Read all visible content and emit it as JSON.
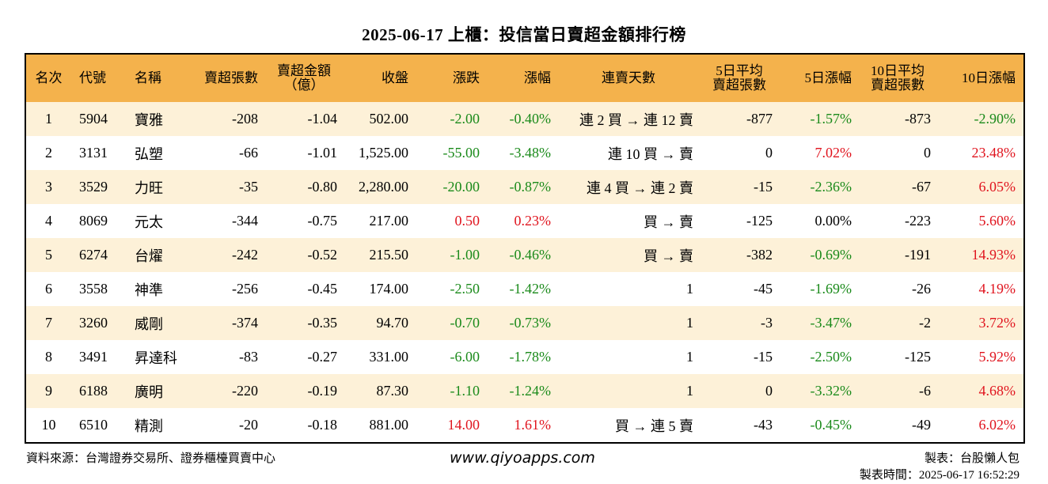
{
  "title": "2025-06-17 上櫃：投信當日賣超金額排行榜",
  "headers": {
    "rank": "名次",
    "code": "代號",
    "name": "名稱",
    "sell_shares": "賣超張數",
    "sell_amount_line1": "賣超金額",
    "sell_amount_line2": "（億）",
    "close": "收盤",
    "change": "漲跌",
    "change_pct": "漲幅",
    "streak": "連賣天數",
    "avg5_line1": "5日平均",
    "avg5_line2": "賣超張數",
    "chg5": "5日漲幅",
    "avg10_line1": "10日平均",
    "avg10_line2": "賣超張數",
    "chg10": "10日漲幅"
  },
  "rows": [
    {
      "rank": "1",
      "code": "5904",
      "name": "寶雅",
      "sell_shares": "-208",
      "sell_amount": "-1.04",
      "close": "502.00",
      "change": "-2.00",
      "change_color": "green",
      "change_pct": "-0.40%",
      "streak": "連 2 買 → 連 12 賣",
      "avg5": "-877",
      "chg5": "-1.57%",
      "chg5_color": "green",
      "avg10": "-873",
      "chg10": "-2.90%",
      "chg10_color": "green"
    },
    {
      "rank": "2",
      "code": "3131",
      "name": "弘塑",
      "sell_shares": "-66",
      "sell_amount": "-1.01",
      "close": "1,525.00",
      "change": "-55.00",
      "change_color": "green",
      "change_pct": "-3.48%",
      "streak": "連 10 買 → 賣",
      "avg5": "0",
      "chg5": "7.02%",
      "chg5_color": "red",
      "avg10": "0",
      "chg10": "23.48%",
      "chg10_color": "red"
    },
    {
      "rank": "3",
      "code": "3529",
      "name": "力旺",
      "sell_shares": "-35",
      "sell_amount": "-0.80",
      "close": "2,280.00",
      "change": "-20.00",
      "change_color": "green",
      "change_pct": "-0.87%",
      "streak": "連 4 買 → 連 2 賣",
      "avg5": "-15",
      "chg5": "-2.36%",
      "chg5_color": "green",
      "avg10": "-67",
      "chg10": "6.05%",
      "chg10_color": "red"
    },
    {
      "rank": "4",
      "code": "8069",
      "name": "元太",
      "sell_shares": "-344",
      "sell_amount": "-0.75",
      "close": "217.00",
      "change": "0.50",
      "change_color": "red",
      "change_pct": "0.23%",
      "streak": "買 → 賣",
      "avg5": "-125",
      "chg5": "0.00%",
      "chg5_color": "black",
      "avg10": "-223",
      "chg10": "5.60%",
      "chg10_color": "red"
    },
    {
      "rank": "5",
      "code": "6274",
      "name": "台燿",
      "sell_shares": "-242",
      "sell_amount": "-0.52",
      "close": "215.50",
      "change": "-1.00",
      "change_color": "green",
      "change_pct": "-0.46%",
      "streak": "買 → 賣",
      "avg5": "-382",
      "chg5": "-0.69%",
      "chg5_color": "green",
      "avg10": "-191",
      "chg10": "14.93%",
      "chg10_color": "red"
    },
    {
      "rank": "6",
      "code": "3558",
      "name": "神準",
      "sell_shares": "-256",
      "sell_amount": "-0.45",
      "close": "174.00",
      "change": "-2.50",
      "change_color": "green",
      "change_pct": "-1.42%",
      "streak": "1",
      "avg5": "-45",
      "chg5": "-1.69%",
      "chg5_color": "green",
      "avg10": "-26",
      "chg10": "4.19%",
      "chg10_color": "red"
    },
    {
      "rank": "7",
      "code": "3260",
      "name": "威剛",
      "sell_shares": "-374",
      "sell_amount": "-0.35",
      "close": "94.70",
      "change": "-0.70",
      "change_color": "green",
      "change_pct": "-0.73%",
      "streak": "1",
      "avg5": "-3",
      "chg5": "-3.47%",
      "chg5_color": "green",
      "avg10": "-2",
      "chg10": "3.72%",
      "chg10_color": "red"
    },
    {
      "rank": "8",
      "code": "3491",
      "name": "昇達科",
      "sell_shares": "-83",
      "sell_amount": "-0.27",
      "close": "331.00",
      "change": "-6.00",
      "change_color": "green",
      "change_pct": "-1.78%",
      "streak": "1",
      "avg5": "-15",
      "chg5": "-2.50%",
      "chg5_color": "green",
      "avg10": "-125",
      "chg10": "5.92%",
      "chg10_color": "red"
    },
    {
      "rank": "9",
      "code": "6188",
      "name": "廣明",
      "sell_shares": "-220",
      "sell_amount": "-0.19",
      "close": "87.30",
      "change": "-1.10",
      "change_color": "green",
      "change_pct": "-1.24%",
      "streak": "1",
      "avg5": "0",
      "chg5": "-3.32%",
      "chg5_color": "green",
      "avg10": "-6",
      "chg10": "4.68%",
      "chg10_color": "red"
    },
    {
      "rank": "10",
      "code": "6510",
      "name": "精測",
      "sell_shares": "-20",
      "sell_amount": "-0.18",
      "close": "881.00",
      "change": "14.00",
      "change_color": "red",
      "change_pct": "1.61%",
      "streak": "買 → 連 5 賣",
      "avg5": "-43",
      "chg5": "-0.45%",
      "chg5_color": "green",
      "avg10": "-49",
      "chg10": "6.02%",
      "chg10_color": "red"
    }
  ],
  "footer": {
    "source": "資料來源：台灣證券交易所、證券櫃檯買賣中心",
    "website": "www.qiyoapps.com",
    "maker": "製表：台股懶人包",
    "time": "製表時間：2025-06-17 16:52:29"
  }
}
